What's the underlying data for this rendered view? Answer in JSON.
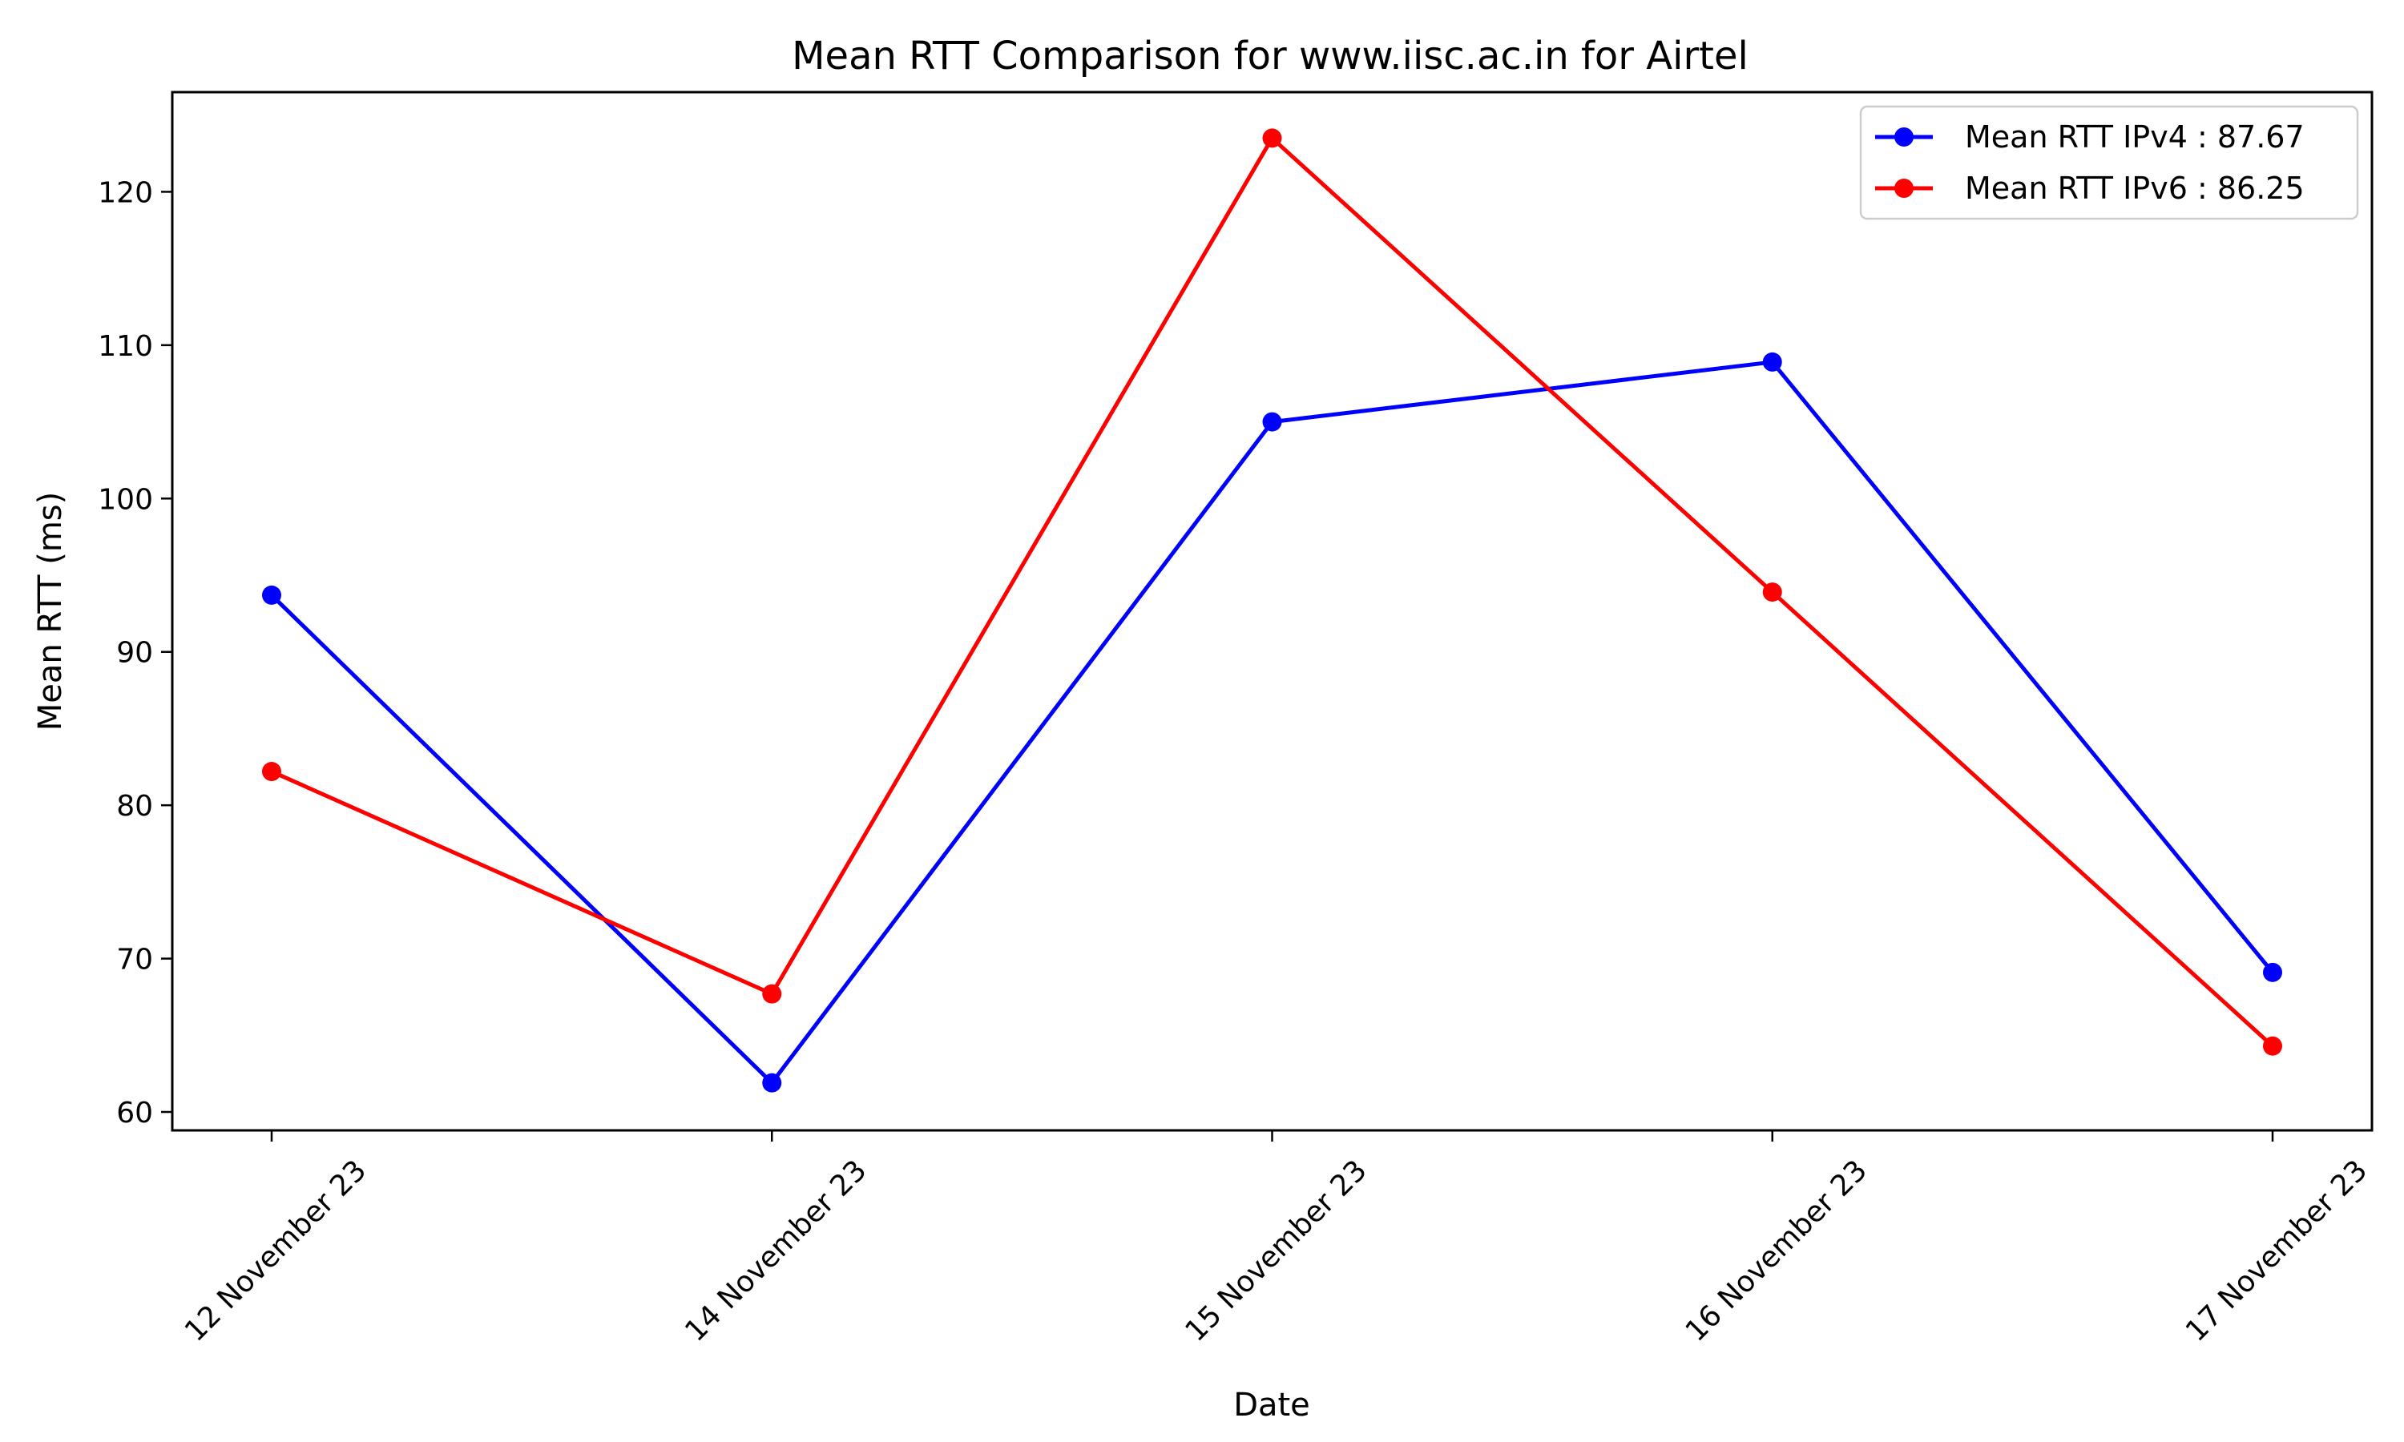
{
  "chart_data": {
    "type": "line",
    "title": "Mean RTT Comparison for www.iisc.ac.in for Airtel",
    "xlabel": "Date",
    "ylabel": "Mean RTT (ms)",
    "categories": [
      "12 November 23",
      "14 November 23",
      "15 November 23",
      "16 November 23",
      "17 November 23"
    ],
    "ylim": [
      58.8,
      126.5
    ],
    "yticks": [
      60,
      70,
      80,
      90,
      100,
      110,
      120
    ],
    "ytick_labels": [
      "60",
      "70",
      "80",
      "90",
      "100",
      "110",
      "120"
    ],
    "grid": false,
    "legend_position": "top-right",
    "series": [
      {
        "name": "Mean RTT IPv4 : 87.67",
        "color": "#0000ff",
        "values": [
          93.7,
          61.9,
          105.0,
          108.9,
          69.1
        ]
      },
      {
        "name": "Mean RTT IPv6 : 86.25",
        "color": "#ff0000",
        "values": [
          82.2,
          67.7,
          123.5,
          93.9,
          64.3
        ]
      }
    ]
  }
}
